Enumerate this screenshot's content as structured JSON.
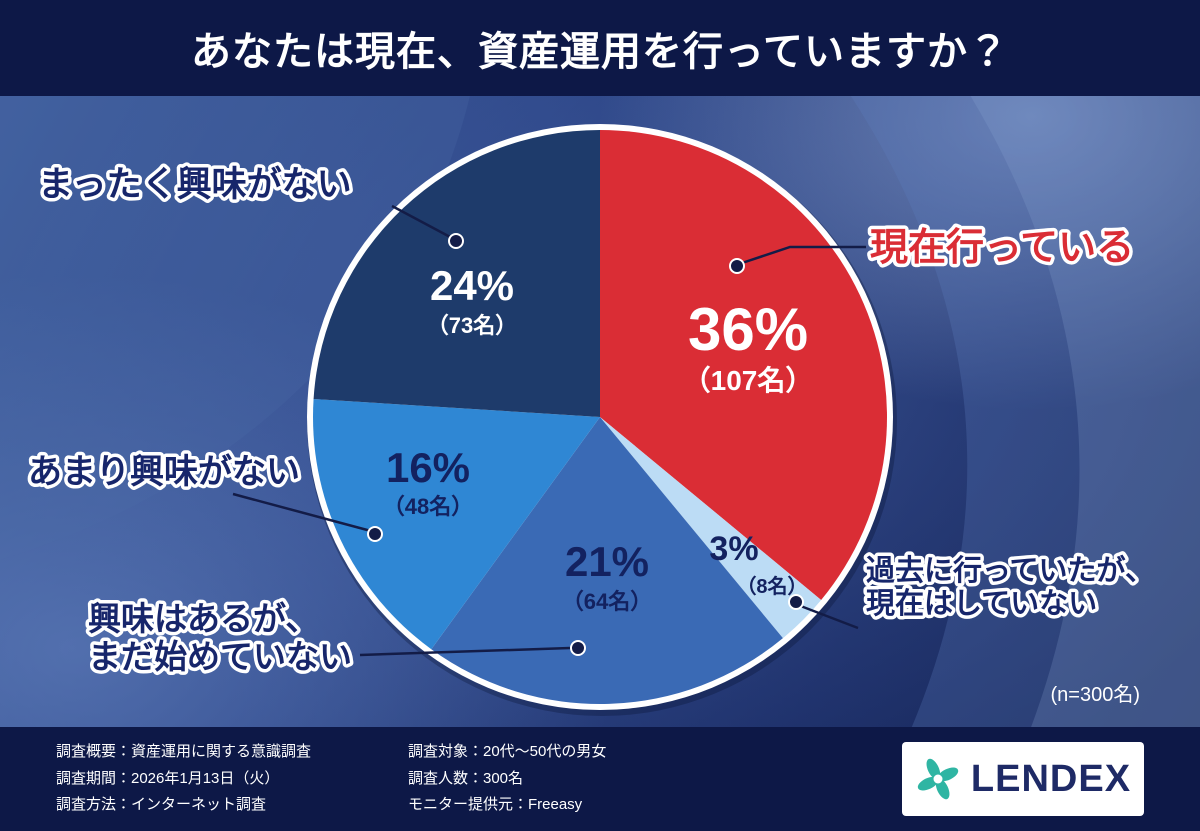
{
  "header": {
    "title": "あなたは現在、資産運用を行っていますか？"
  },
  "chart_data": {
    "type": "pie",
    "title": "あなたは現在、資産運用を行っていますか？",
    "total": 300,
    "n_label": "(n=300名)",
    "start_angle_deg": -90,
    "direction": "clockwise",
    "legend": "none (callout labels)",
    "segments": [
      {
        "label": "現在行っている",
        "label_lines": [
          "現在行っている"
        ],
        "value_pct": 36,
        "count": 107,
        "pct_label": "36%",
        "count_label": "（107名）",
        "color": "#da2d35",
        "text_color": "#ffffff",
        "callout_color": "#da2d35"
      },
      {
        "label": "過去に行っていたが、現在はしていない",
        "label_lines": [
          "過去に行っていたが、",
          "現在はしていない"
        ],
        "value_pct": 3,
        "count": 8,
        "pct_label": "3%",
        "count_label": "（8名）",
        "color": "#bcdcf5",
        "text_color": "#132260",
        "callout_color": "#17266b"
      },
      {
        "label": "興味はあるが、まだ始めていない",
        "label_lines": [
          "興味はあるが、",
          "まだ始めていない"
        ],
        "value_pct": 21,
        "count": 64,
        "pct_label": "21%",
        "count_label": "（64名）",
        "color": "#3a6ab5",
        "text_color": "#132260",
        "callout_color": "#17266b"
      },
      {
        "label": "あまり興味がない",
        "label_lines": [
          "あまり興味がない"
        ],
        "value_pct": 16,
        "count": 48,
        "pct_label": "16%",
        "count_label": "（48名）",
        "color": "#2f87d4",
        "text_color": "#132260",
        "callout_color": "#17266b"
      },
      {
        "label": "まったく興味がない",
        "label_lines": [
          "まったく興味がない"
        ],
        "value_pct": 24,
        "count": 73,
        "pct_label": "24%",
        "count_label": "（73名）",
        "color": "#1e3b6b",
        "text_color": "#ffffff",
        "callout_color": "#17266b"
      }
    ]
  },
  "colors": {
    "header_bg": "#0d1847",
    "footer_bg": "#0d1847",
    "accent_red": "#da2d35",
    "label_navy": "#17266b",
    "logo_teal": "#2fb5a3",
    "logo_navy": "#1e2a66"
  },
  "footer": {
    "left": [
      "調査概要：資産運用に関する意識調査",
      "調査期間：2026年1月13日（火）",
      "調査方法：インターネット調査"
    ],
    "middle": [
      "調査対象：20代〜50代の男女",
      "調査人数：300名",
      "モニター提供元：Freeasy"
    ],
    "logo_text": "LENDEX"
  }
}
